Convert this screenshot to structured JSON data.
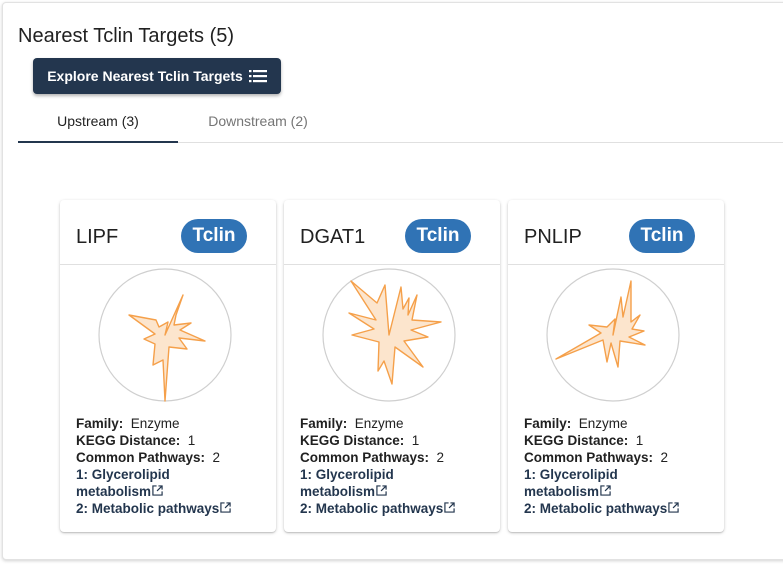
{
  "header": {
    "title": "Nearest Tclin Targets (5)",
    "explore_label": "Explore Nearest Tclin Targets"
  },
  "tabs": [
    {
      "label": "Upstream (3)",
      "active": true
    },
    {
      "label": "Downstream (2)",
      "active": false
    }
  ],
  "labels": {
    "family": "Family:",
    "kegg_distance": "KEGG Distance:",
    "common_pathways": "Common Pathways:"
  },
  "colors": {
    "accent": "#23364e",
    "tclin": "#3073b5",
    "radar": "#f5a04a"
  },
  "cards": [
    {
      "symbol": "LIPF",
      "badge": "Tclin",
      "family": "Enzyme",
      "kegg_distance": "1",
      "common_pathways": "2",
      "pathway_1_prefix": "1: ",
      "pathway_1_a": "Glycerolipid",
      "pathway_1_b": "metabolism",
      "pathway_2_prefix": "2: ",
      "pathway_2": "Metabolic pathways"
    },
    {
      "symbol": "DGAT1",
      "badge": "Tclin",
      "family": "Enzyme",
      "kegg_distance": "1",
      "common_pathways": "2",
      "pathway_1_prefix": "1: ",
      "pathway_1_a": "Glycerolipid",
      "pathway_1_b": "metabolism",
      "pathway_2_prefix": "2: ",
      "pathway_2": "Metabolic pathways"
    },
    {
      "symbol": "PNLIP",
      "badge": "Tclin",
      "family": "Enzyme",
      "kegg_distance": "1",
      "common_pathways": "2",
      "pathway_1_prefix": "1: ",
      "pathway_1_a": "Glycerolipid",
      "pathway_1_b": "metabolism",
      "pathway_2_prefix": "2: ",
      "pathway_2": "Metabolic pathways"
    }
  ]
}
